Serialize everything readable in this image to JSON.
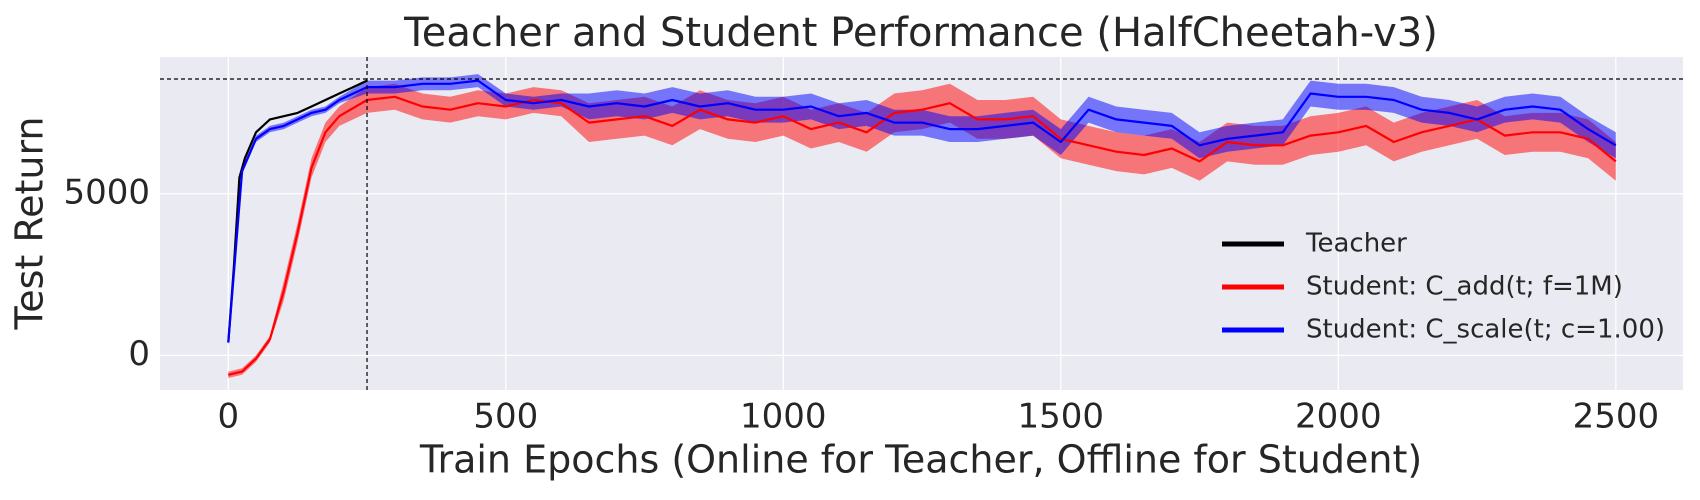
{
  "chart_data": {
    "type": "line",
    "title": "Teacher and Student Performance (HalfCheetah-v3)",
    "x_label": "Train Epochs (Online for Teacher, Offline for Student)",
    "y_label": "Test Return",
    "xlim": [
      -123,
      2621
    ],
    "ylim": [
      -1070,
      9230
    ],
    "xticks": [
      0,
      500,
      1000,
      1500,
      2000,
      2500
    ],
    "yticks": [
      0,
      5000
    ],
    "grid": true,
    "background": "#eaeaf2",
    "legend": "lower right",
    "hline": 8550,
    "vline": 250,
    "series": [
      {
        "name": "Teacher",
        "color": "#000000",
        "x": [
          0,
          10,
          20,
          30,
          50,
          75,
          100,
          125,
          150,
          175,
          200,
          225,
          250
        ],
        "values": [
          400,
          2700,
          5500,
          6100,
          6900,
          7300,
          7400,
          7500,
          7700,
          7900,
          8100,
          8300,
          8500
        ]
      },
      {
        "name": "Student: C_add(t; f=1M)",
        "color": "#ff0000",
        "x": [
          0,
          25,
          50,
          75,
          100,
          125,
          150,
          175,
          200,
          250,
          300,
          350,
          400,
          450,
          500,
          550,
          600,
          650,
          700,
          750,
          800,
          850,
          900,
          950,
          1000,
          1050,
          1100,
          1150,
          1200,
          1250,
          1300,
          1350,
          1400,
          1450,
          1500,
          1550,
          1600,
          1650,
          1700,
          1750,
          1800,
          1850,
          1900,
          1950,
          2000,
          2050,
          2100,
          2150,
          2200,
          2250,
          2300,
          2350,
          2400,
          2450,
          2500
        ],
        "values": [
          -600,
          -500,
          -100,
          500,
          2000,
          3800,
          5800,
          6900,
          7400,
          7900,
          8000,
          7700,
          7600,
          7800,
          7700,
          7900,
          7800,
          7200,
          7300,
          7400,
          7100,
          7600,
          7300,
          7200,
          7400,
          7000,
          7200,
          6900,
          7500,
          7600,
          7800,
          7300,
          7300,
          7400,
          6700,
          6500,
          6300,
          6200,
          6400,
          6000,
          6600,
          6500,
          6500,
          6800,
          6900,
          7100,
          6600,
          6900,
          7100,
          7300,
          6800,
          6900,
          6900,
          6700,
          6000
        ],
        "band_lower": [
          -700,
          -600,
          -200,
          400,
          1700,
          3500,
          5500,
          6600,
          7100,
          7500,
          7600,
          7300,
          7200,
          7400,
          7300,
          7500,
          7400,
          6600,
          6700,
          6800,
          6500,
          7000,
          6700,
          6600,
          6800,
          6400,
          6600,
          6300,
          6900,
          7000,
          7200,
          6700,
          6700,
          6800,
          6100,
          5900,
          5700,
          5600,
          5800,
          5400,
          6000,
          5900,
          5900,
          6200,
          6300,
          6500,
          6000,
          6300,
          6500,
          6700,
          6200,
          6300,
          6300,
          6100,
          5400
        ],
        "band_upper": [
          -500,
          -400,
          0,
          600,
          2300,
          4100,
          6100,
          7200,
          7700,
          8300,
          8400,
          8100,
          8000,
          8200,
          8100,
          8300,
          8200,
          7800,
          7900,
          8000,
          7700,
          8200,
          7900,
          7800,
          8000,
          7600,
          7800,
          7500,
          8100,
          8200,
          8400,
          7900,
          7900,
          8000,
          7300,
          7100,
          6900,
          6800,
          7000,
          6600,
          7200,
          7100,
          7100,
          7400,
          7500,
          7700,
          7200,
          7500,
          7700,
          7900,
          7400,
          7500,
          7500,
          7300,
          6600
        ]
      },
      {
        "name": "Student: C_scale(t; c=1.00)",
        "color": "#0000ff",
        "x": [
          0,
          25,
          50,
          75,
          100,
          125,
          150,
          175,
          200,
          250,
          300,
          350,
          400,
          450,
          500,
          550,
          600,
          650,
          700,
          750,
          800,
          850,
          900,
          950,
          1000,
          1050,
          1100,
          1150,
          1200,
          1250,
          1300,
          1350,
          1400,
          1450,
          1500,
          1550,
          1600,
          1650,
          1700,
          1750,
          1800,
          1850,
          1900,
          1950,
          2000,
          2050,
          2100,
          2150,
          2200,
          2250,
          2300,
          2350,
          2400,
          2450,
          2500
        ],
        "values": [
          400,
          5700,
          6700,
          7000,
          7100,
          7300,
          7500,
          7600,
          7900,
          8300,
          8300,
          8400,
          8400,
          8500,
          7900,
          7800,
          7900,
          7700,
          7800,
          7700,
          7900,
          7700,
          7800,
          7600,
          7600,
          7700,
          7400,
          7500,
          7200,
          7200,
          7000,
          7000,
          7100,
          7200,
          6600,
          7600,
          7300,
          7200,
          7100,
          6500,
          6700,
          6800,
          6900,
          8100,
          8000,
          8000,
          7900,
          7600,
          7500,
          7300,
          7600,
          7700,
          7600,
          7000,
          6500
        ],
        "band_lower": [
          300,
          5600,
          6600,
          6900,
          7000,
          7200,
          7400,
          7500,
          7800,
          8100,
          8100,
          8200,
          8200,
          8300,
          7700,
          7600,
          7700,
          7300,
          7400,
          7300,
          7500,
          7300,
          7400,
          7200,
          7200,
          7300,
          7000,
          7100,
          6800,
          6800,
          6600,
          6600,
          6700,
          6800,
          6200,
          7200,
          6900,
          6800,
          6700,
          6100,
          6300,
          6400,
          6500,
          7700,
          7600,
          7600,
          7500,
          7200,
          7100,
          6900,
          7200,
          7300,
          7200,
          6600,
          6100
        ],
        "band_upper": [
          500,
          5800,
          6800,
          7100,
          7200,
          7400,
          7600,
          7700,
          8000,
          8500,
          8500,
          8600,
          8600,
          8700,
          8100,
          8000,
          8100,
          8100,
          8200,
          8100,
          8300,
          8100,
          8200,
          8000,
          8000,
          8100,
          7800,
          7900,
          7600,
          7600,
          7400,
          7400,
          7500,
          7600,
          7000,
          8000,
          7700,
          7600,
          7500,
          6900,
          7100,
          7200,
          7300,
          8500,
          8400,
          8400,
          8300,
          8000,
          7900,
          7700,
          8000,
          8100,
          8000,
          7400,
          6900
        ]
      }
    ]
  }
}
